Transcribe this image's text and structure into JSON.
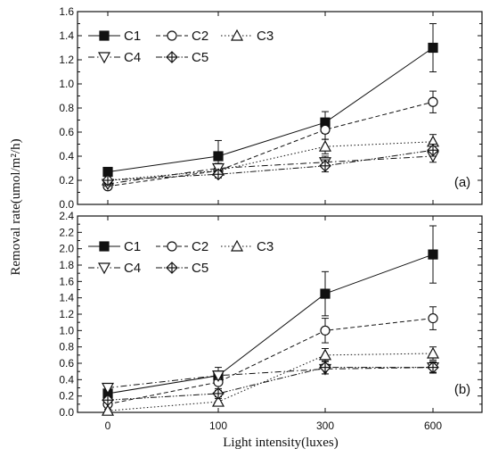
{
  "chart_data": [
    {
      "type": "line",
      "panel": "(a)",
      "categories": [
        "0",
        "100",
        "300",
        "600"
      ],
      "ylim": [
        0,
        1.6
      ],
      "yticks": [
        "0.0",
        "0.2",
        "0.4",
        "0.6",
        "0.8",
        "1.0",
        "1.2",
        "1.4",
        "1.6"
      ],
      "series": [
        {
          "name": "C1",
          "marker": "square-filled",
          "dash": "solid",
          "values": [
            0.27,
            0.4,
            0.68,
            1.3
          ],
          "err": [
            0.02,
            0.13,
            0.09,
            0.2
          ]
        },
        {
          "name": "C2",
          "marker": "circle-open",
          "dash": "dash",
          "values": [
            0.15,
            0.28,
            0.62,
            0.85
          ],
          "err": [
            0.02,
            0.05,
            0.08,
            0.09
          ]
        },
        {
          "name": "C3",
          "marker": "triangle-up-open",
          "dash": "dot",
          "values": [
            0.2,
            0.28,
            0.48,
            0.52
          ],
          "err": [
            0.02,
            0.04,
            0.06,
            0.06
          ]
        },
        {
          "name": "C4",
          "marker": "triangle-down-open",
          "dash": "dashdot",
          "values": [
            0.17,
            0.3,
            0.35,
            0.4
          ],
          "err": [
            0.02,
            0.04,
            0.05,
            0.05
          ]
        },
        {
          "name": "C5",
          "marker": "diamond-cross",
          "dash": "dashdotdot",
          "values": [
            0.2,
            0.25,
            0.32,
            0.45
          ],
          "err": [
            0.02,
            0.03,
            0.05,
            0.05
          ]
        }
      ]
    },
    {
      "type": "line",
      "panel": "(b)",
      "categories": [
        "0",
        "100",
        "300",
        "600"
      ],
      "ylim": [
        0,
        2.4
      ],
      "yticks": [
        "0.0",
        "0.2",
        "0.4",
        "0.6",
        "0.8",
        "1.0",
        "1.2",
        "1.4",
        "1.6",
        "1.8",
        "2.0",
        "2.2",
        "2.4"
      ],
      "series": [
        {
          "name": "C1",
          "marker": "square-filled",
          "dash": "solid",
          "values": [
            0.23,
            0.45,
            1.45,
            1.93
          ],
          "err": [
            0.03,
            0.1,
            0.27,
            0.35
          ]
        },
        {
          "name": "C2",
          "marker": "circle-open",
          "dash": "dash",
          "values": [
            0.1,
            0.37,
            1.0,
            1.15
          ],
          "err": [
            0.03,
            0.08,
            0.15,
            0.14
          ]
        },
        {
          "name": "C3",
          "marker": "triangle-up-open",
          "dash": "dot",
          "values": [
            0.02,
            0.13,
            0.7,
            0.72
          ],
          "err": [
            0.02,
            0.04,
            0.08,
            0.08
          ]
        },
        {
          "name": "C4",
          "marker": "triangle-down-open",
          "dash": "dashdot",
          "values": [
            0.3,
            0.45,
            0.53,
            0.55
          ],
          "err": [
            0.03,
            0.05,
            0.06,
            0.06
          ]
        },
        {
          "name": "C5",
          "marker": "diamond-cross",
          "dash": "dashdotdot",
          "values": [
            0.15,
            0.23,
            0.55,
            0.55
          ],
          "err": [
            0.03,
            0.04,
            0.08,
            0.07
          ]
        }
      ]
    }
  ],
  "xlabel": "Light intensity(luxes)",
  "ylabel": "Removal rate(umol/m²/h)",
  "legend_position": "top-left",
  "colors": {
    "line": "#111111",
    "background": "#ffffff"
  }
}
